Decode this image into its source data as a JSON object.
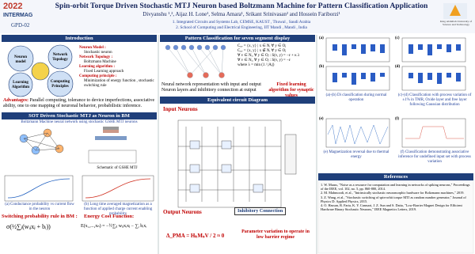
{
  "header": {
    "title": "Spin-orbit Torque Driven Stochastic MTJ Neuron based Boltzmann Machine for Pattern Classification Application",
    "authors": "Divyanshu ¹,², Aijaz H. Lone¹, Selma Amara¹, Srikant Srinivasan² and Hossein Fariborzi¹",
    "affiliation_1": "1.   Integrated Circuits and Systems Lab, CEMSE, KAUST , Thuwal , Saudi Arabia",
    "affiliation_2": "2.   School of Computing and Electrical Engineering, IIT Mandi , Mandi , India",
    "code": "GPD-02",
    "logo_year": "2022",
    "logo_name": "INTERMAG",
    "logo_right": "King Abdullah University of Science and Technology"
  },
  "introduction": {
    "heading": "Introduction",
    "circles": [
      "Neuron model",
      "Network Topology",
      "Learning Algorithm",
      "Computing Principles"
    ],
    "items": [
      {
        "term": "Neuron Model :",
        "desc": "Stochastic neuron"
      },
      {
        "term": "Network Topology :",
        "desc": "Boltzmann Machine"
      },
      {
        "term": "Learning algorithm :",
        "desc": "Fixed Learning approach"
      },
      {
        "term": "Computing principle :",
        "desc": "Minimization of energy function , stochastic switching rule"
      }
    ],
    "advantages_term": "Advantages:",
    "advantages": "Parallel computing, tolerance to device imperfections, associative ability, one to one mapping of neuronal behavior, probabilistic inference."
  },
  "sot": {
    "heading": "SOT Driven Stochastic MTJ as Neuron in BM",
    "subtitle": "Boltzmann Machine neural network using stochastic GSHE MTJ neurons",
    "schematic": "Schematic of GSHE MTJ",
    "caption_a": "(a) Conductance probability vs current flow in the neuron",
    "caption_b": "(b) Long time averaged magnetization as a function of applied charge current enabling probability",
    "switching_label": "Switching probability rule in BM :",
    "switching_formula": "σ(½∑ⱼ(wᵢⱼxⱼ + bᵢ))",
    "energy_label": "Energy Cost Function:",
    "energy_formula": "E(x₁,...,xₙ) = −½∑ᵢⱼ wᵢⱼxᵢxⱼ − ∑ᵢ bᵢxᵢ"
  },
  "pattern": {
    "heading": "Pattern Classification for seven segment display",
    "eq1": "Cᵤᵥ = {x, y} | x ∈ Nᵢ ∀ y ∈ Oⱼ",
    "eq2": "Cᵤᵥ = {x, y} | x ∉ Nᵢ ∀ y ∈ Oⱼ",
    "eq3": "∀ v ∈ Nᵢ, ∀ y ∈ Oⱼ : S(v, y) = −ε + κ λ",
    "eq4": "∀ v ∈ Nᵢ, ∀ y ∈ Oⱼ : S(v, y) = −ε",
    "eq5": "where λ = min (1 / |Aⱼ|)",
    "caption": "Neural network representation with input and output Neuron layers and inhibitory connection at output",
    "fixed": "Fixed learning algorithm for synaptic values"
  },
  "circuit": {
    "heading": "Equivalent circuit Diagram",
    "input": "Input Neurons",
    "output": "Output Neurons",
    "inhibitory": "Inhibitory Connection",
    "param": "Parameter variation to operate in low barrier regime",
    "formula": "Δ_PMA = HₖMₛV / 2 ≈ 0"
  },
  "results": {
    "labels": [
      "(a)",
      "(b)",
      "(c)",
      "(d)",
      "(e)",
      "(f)"
    ],
    "caption_ab": "(a)-(b) Di classification during normal operation",
    "caption_cd": "(c)-(d) Classification with process variation of ±1% in TMR, Oxide layer and free layer following Gaussian distribution",
    "caption_e": "(e) Magnetization reversal due to thermal energy",
    "caption_f": "(f) Classification demonstrating associative inference for undefined input set with process variation"
  },
  "references": {
    "heading": "References",
    "items": [
      "1. W. Maass, \"Noise as a resource for computation and learning in networks of spiking neurons,\" Proceedings of the IEEE, vol. 102, no. 5, pp. 860-880, 2014.",
      "2. M. Mahmoodi, et al., \"Intrinsically stochastic neuromorphic hardware for Boltzmann machines,\" 2019.",
      "3. Z. Wang, et al., \"Stochastic switching of spin-orbit torque MTJ as random number generator,\" Journal of Physics D: Applied Physics, 2015.",
      "4. O. Hassan, R. Faria, K. Y. Camsari, J. Z. Sun and S. Datta, \"Low-Barrier Magnet Design for Efficient Hardware Binary Stochastic Neurons,\" IEEE Magnetics Letters, 2019."
    ]
  }
}
